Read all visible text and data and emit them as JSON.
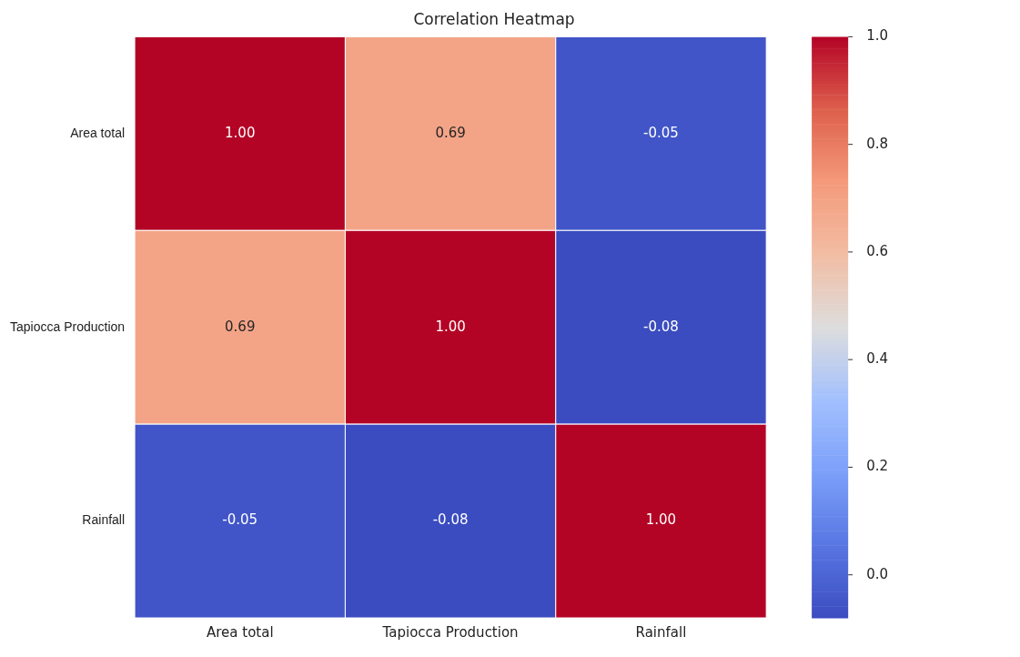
{
  "chart_data": {
    "type": "heatmap",
    "title": "Correlation Heatmap",
    "categories": [
      "Area total",
      "Tapiocca Production",
      "Rainfall"
    ],
    "y_categories": [
      "Area total",
      "Tapiocca Production",
      "Rainfall"
    ],
    "cells": [
      [
        1.0,
        0.69,
        -0.05
      ],
      [
        0.69,
        1.0,
        -0.08
      ],
      [
        -0.05,
        -0.08,
        1.0
      ]
    ],
    "cell_labels": [
      [
        "1.00",
        "0.69",
        "-0.05"
      ],
      [
        "0.69",
        "1.00",
        "-0.08"
      ],
      [
        "-0.05",
        "-0.08",
        "1.00"
      ]
    ],
    "clim": [
      -0.08,
      1.0
    ],
    "cticks": [
      {
        "value": 0,
        "label": "0.0"
      },
      0.2,
      0.4,
      0.6,
      0.8,
      {
        "value": 1,
        "label": "1.0"
      }
    ]
  }
}
